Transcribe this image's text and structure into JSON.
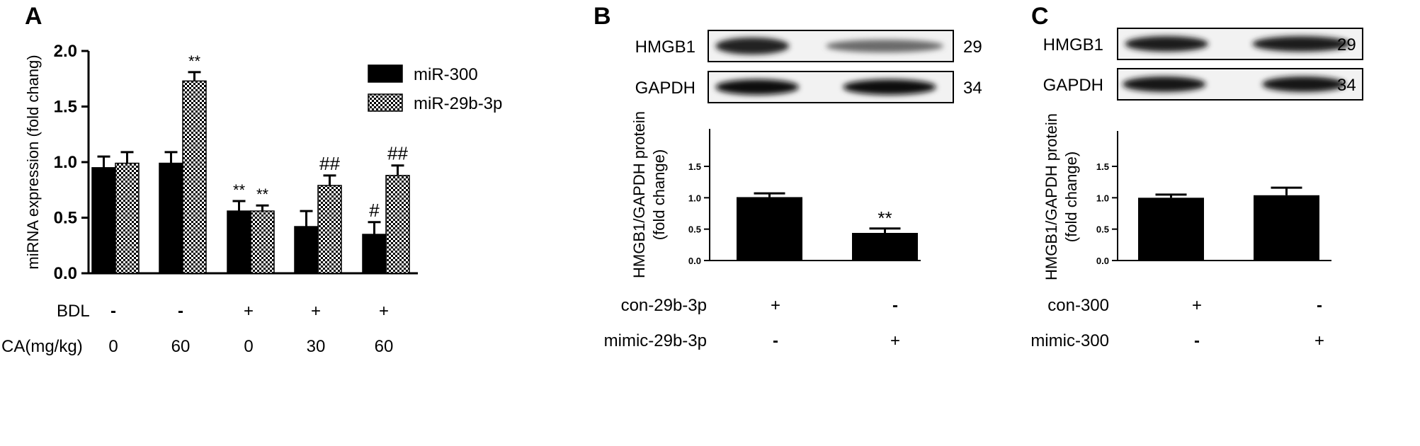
{
  "chart_data": [
    {
      "panel": "A",
      "type": "bar",
      "ylabel": "miRNA expression (fold chang)",
      "ylim": [
        0,
        2.0
      ],
      "yticks": [
        "0.0",
        "0.5",
        "1.0",
        "1.5",
        "2.0"
      ],
      "legend_position": "top-right",
      "series": [
        {
          "name": "miR-300",
          "values": [
            0.95,
            0.99,
            0.56,
            0.42,
            0.35
          ],
          "errors": [
            0.1,
            0.1,
            0.09,
            0.14,
            0.11
          ],
          "annotations": [
            "",
            "",
            "**",
            "",
            "#"
          ],
          "pattern": "solid",
          "color": "#000000"
        },
        {
          "name": "miR-29b-3p",
          "values": [
            0.99,
            1.73,
            0.56,
            0.79,
            0.88
          ],
          "errors": [
            0.1,
            0.08,
            0.05,
            0.09,
            0.09
          ],
          "annotations": [
            "",
            "**",
            "**",
            "##",
            "##"
          ],
          "pattern": "checker",
          "color": "#000000"
        }
      ],
      "conditions": [
        {
          "label": "BDL",
          "values": [
            "-",
            "-",
            "+",
            "+",
            "+"
          ]
        },
        {
          "label": "CA(mg/kg)",
          "values": [
            "0",
            "60",
            "0",
            "30",
            "60"
          ]
        }
      ]
    },
    {
      "panel": "B",
      "type": "bar",
      "ylabel": [
        "HMGB1/GAPDH protein",
        "(fold change)"
      ],
      "ylim": [
        0,
        1.5
      ],
      "yticks": [
        "0.0",
        "0.5",
        "1.0",
        "1.5"
      ],
      "values": [
        1.01,
        0.44
      ],
      "errors": [
        0.06,
        0.07
      ],
      "annotations": [
        "",
        "**"
      ],
      "blots": [
        {
          "label": "HMGB1",
          "kda": "29"
        },
        {
          "label": "GAPDH",
          "kda": "34"
        }
      ],
      "conditions": [
        {
          "label": "con-29b-3p",
          "values": [
            "+",
            "-"
          ]
        },
        {
          "label": "mimic-29b-3p",
          "values": [
            "-",
            "+"
          ]
        }
      ]
    },
    {
      "panel": "C",
      "type": "bar",
      "ylabel": [
        "HMGB1/GAPDH protein",
        "(fold change)"
      ],
      "ylim": [
        0,
        1.5
      ],
      "yticks": [
        "0.0",
        "0.5",
        "1.0",
        "1.5"
      ],
      "values": [
        1.0,
        1.04
      ],
      "errors": [
        0.05,
        0.12
      ],
      "annotations": [
        "",
        ""
      ],
      "blots": [
        {
          "label": "HMGB1",
          "kda": "29"
        },
        {
          "label": "GAPDH",
          "kda": "34"
        }
      ],
      "conditions": [
        {
          "label": "con-300",
          "values": [
            "+",
            "-"
          ]
        },
        {
          "label": "mimic-300",
          "values": [
            "-",
            "+"
          ]
        }
      ]
    }
  ]
}
